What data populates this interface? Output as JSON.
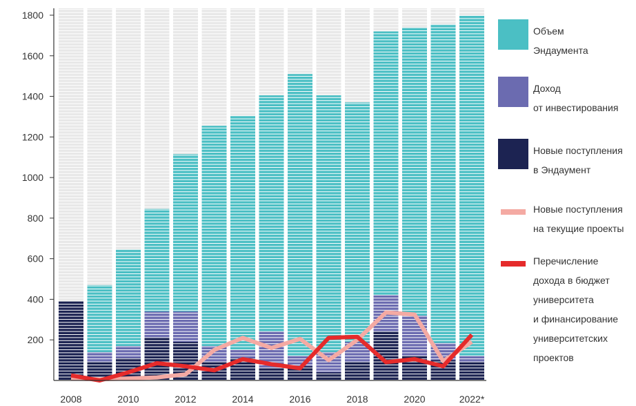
{
  "chart_data": {
    "type": "bar",
    "categories": [
      "2008",
      null,
      "2010",
      null,
      "2012",
      null,
      "2014",
      null,
      "2016",
      null,
      "2018",
      null,
      "2020",
      null,
      "2022*"
    ],
    "series": [
      {
        "name": "Объем\nЭндаумента",
        "type": "bar",
        "color": "#4bbfc4",
        "values": [
          390,
          470,
          645,
          845,
          1115,
          1255,
          1305,
          1405,
          1510,
          1405,
          1370,
          1720,
          1740,
          1755,
          1800
        ]
      },
      {
        "name": "Доход\nот инвестирования",
        "type": "bar",
        "color": "#6b6bb0",
        "values": [
          0,
          140,
          170,
          340,
          340,
          170,
          150,
          240,
          120,
          140,
          190,
          420,
          320,
          185,
          120
        ]
      },
      {
        "name": "Новые поступления\nв Эндаумент",
        "type": "bar",
        "color": "#1c2352",
        "values": [
          390,
          90,
          110,
          210,
          190,
          90,
          110,
          60,
          70,
          40,
          90,
          240,
          120,
          100,
          90
        ]
      },
      {
        "name": "Новые поступления\nна текущие проекты",
        "type": "line",
        "color": "#f4aaa3",
        "values": [
          10,
          5,
          10,
          15,
          30,
          150,
          210,
          160,
          205,
          100,
          200,
          335,
          325,
          95,
          190
        ]
      },
      {
        "name": "Перечисление\nдохода в бюджет\nуниверситета\nи финансирование\nуниверситетских\nпроектов",
        "type": "line",
        "color": "#e52b2b",
        "values": [
          25,
          0,
          40,
          85,
          70,
          50,
          105,
          80,
          60,
          210,
          215,
          90,
          105,
          70,
          225
        ]
      }
    ],
    "ylim": [
      0,
      1800
    ],
    "yticks": [
      200,
      400,
      600,
      800,
      1000,
      1200,
      1400,
      1600,
      1800
    ]
  }
}
